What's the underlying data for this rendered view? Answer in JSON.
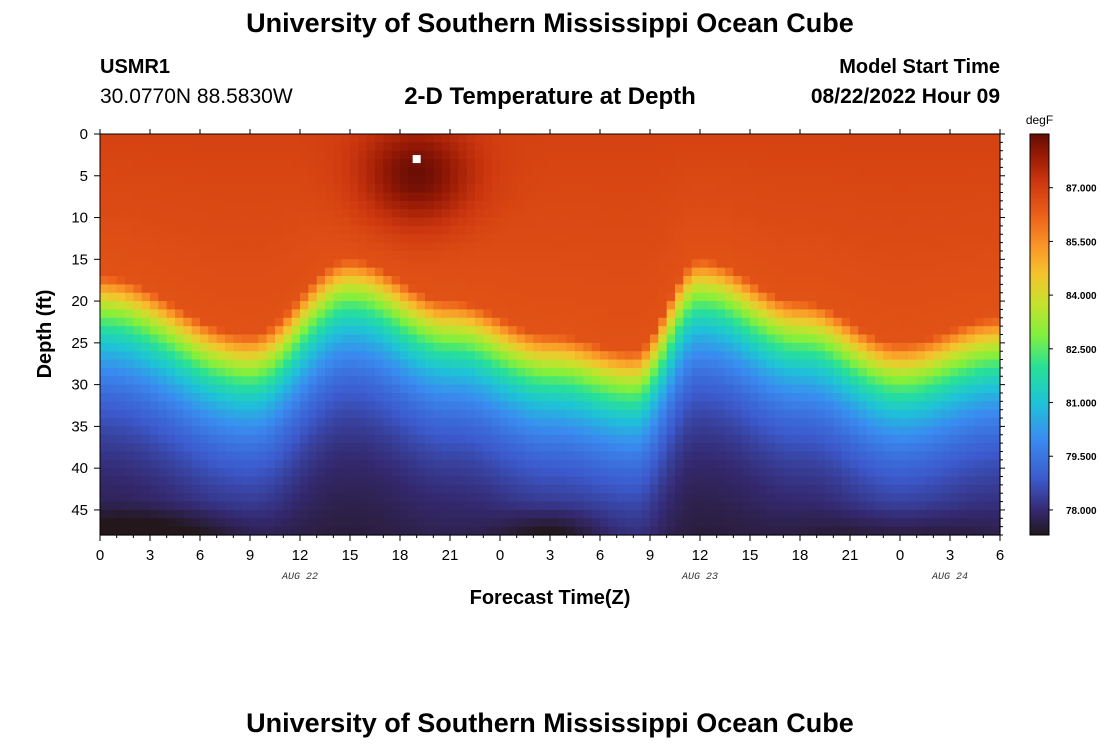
{
  "page": {
    "title": "University of Southern Mississippi Ocean Cube",
    "footer_title": "University of Southern Mississippi Ocean Cube",
    "station_id": "USMR1",
    "station_coords": "30.0770N  88.5830W",
    "subtitle": "2-D Temperature at Depth",
    "model_start_label": "Model Start Time",
    "model_start_value": "08/22/2022 Hour 09"
  },
  "chart_data": {
    "type": "heatmap",
    "title": "2-D Temperature at Depth",
    "xlabel": "Forecast Time(Z)",
    "ylabel": "Depth (ft)",
    "x_ticks": [
      "0",
      "3",
      "6",
      "9",
      "12",
      "15",
      "18",
      "21",
      "0",
      "3",
      "6",
      "9",
      "12",
      "15",
      "18",
      "21",
      "0",
      "3",
      "6"
    ],
    "x_range_hours": [
      0,
      54
    ],
    "y_ticks": [
      "0",
      "5",
      "10",
      "15",
      "20",
      "25",
      "30",
      "35",
      "40",
      "45"
    ],
    "ylim": [
      0,
      48
    ],
    "date_labels": [
      {
        "text": "AUG 22",
        "hour": 12
      },
      {
        "text": "AUG 23",
        "hour": 36
      },
      {
        "text": "AUG 24",
        "hour": 51
      }
    ],
    "colorbar": {
      "unit": "degF",
      "ticks": [
        "87.000",
        "85.500",
        "84.000",
        "82.500",
        "81.000",
        "79.500",
        "78.000"
      ],
      "tick_values": [
        87.0,
        85.5,
        84.0,
        82.5,
        81.0,
        79.5,
        78.0
      ],
      "range": [
        77.3,
        88.5
      ]
    },
    "marker": {
      "hour": 19,
      "depth": 3
    },
    "thermocline_depth_by_hour": [
      {
        "hour": 0,
        "depth": 17
      },
      {
        "hour": 9,
        "depth": 24
      },
      {
        "hour": 15,
        "depth": 15
      },
      {
        "hour": 21,
        "depth": 20
      },
      {
        "hour": 27,
        "depth": 24
      },
      {
        "hour": 32,
        "depth": 26
      },
      {
        "hour": 36,
        "depth": 15
      },
      {
        "hour": 42,
        "depth": 20
      },
      {
        "hour": 48,
        "depth": 25
      },
      {
        "hour": 54,
        "depth": 22
      }
    ]
  }
}
